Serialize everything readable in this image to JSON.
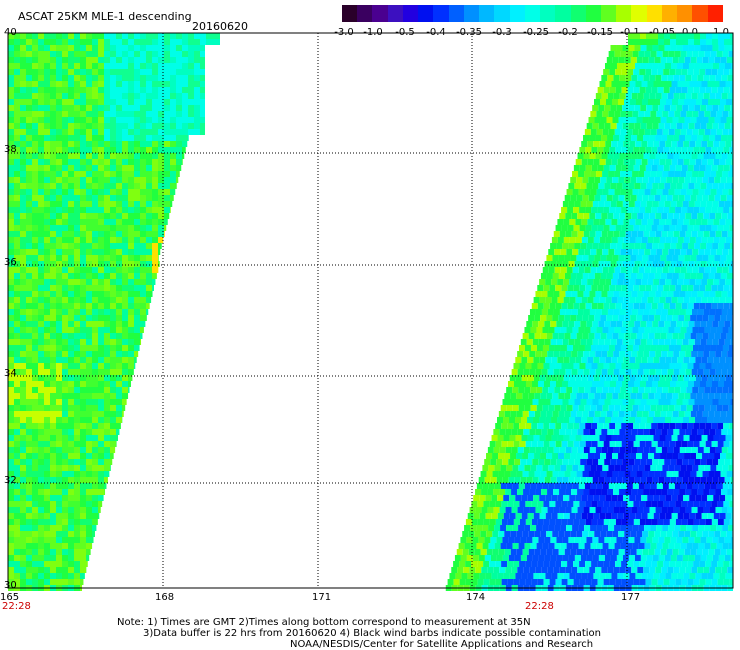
{
  "header": {
    "title": "ASCAT 25KM MLE-1 descending",
    "date": "20160620"
  },
  "colorbar": {
    "labels": [
      "-3.0",
      "-1.0",
      "-0.5",
      "-0.4",
      "-0.35",
      "-0.3",
      "-0.25",
      "-0.2",
      "-0.15",
      "-0.1",
      "-0.05",
      "0.0",
      "1.0"
    ],
    "colors": [
      "#300030",
      "#4a0090",
      "#2200e0",
      "#0030ff",
      "#0090ff",
      "#00d8ff",
      "#00ffe8",
      "#00ffa0",
      "#20ff40",
      "#a8ff00",
      "#ffe000",
      "#ff9000",
      "#ff2000"
    ]
  },
  "map": {
    "lat_labels": [
      "40",
      "38",
      "36",
      "34",
      "32",
      "30"
    ],
    "lon_labels": [
      "165",
      "168",
      "171",
      "174",
      "177"
    ],
    "time_labels": [
      "22:28",
      "22:28"
    ]
  },
  "notes": [
    "Note: 1) Times are GMT 2)Times along bottom correspond to measurement at 35N",
    "3)Data buffer is 22 hrs from 20160620 4) Black wind barbs indicate possible contamination",
    "NOAA/NESDIS/Center for Satellite Applications and Research"
  ]
}
